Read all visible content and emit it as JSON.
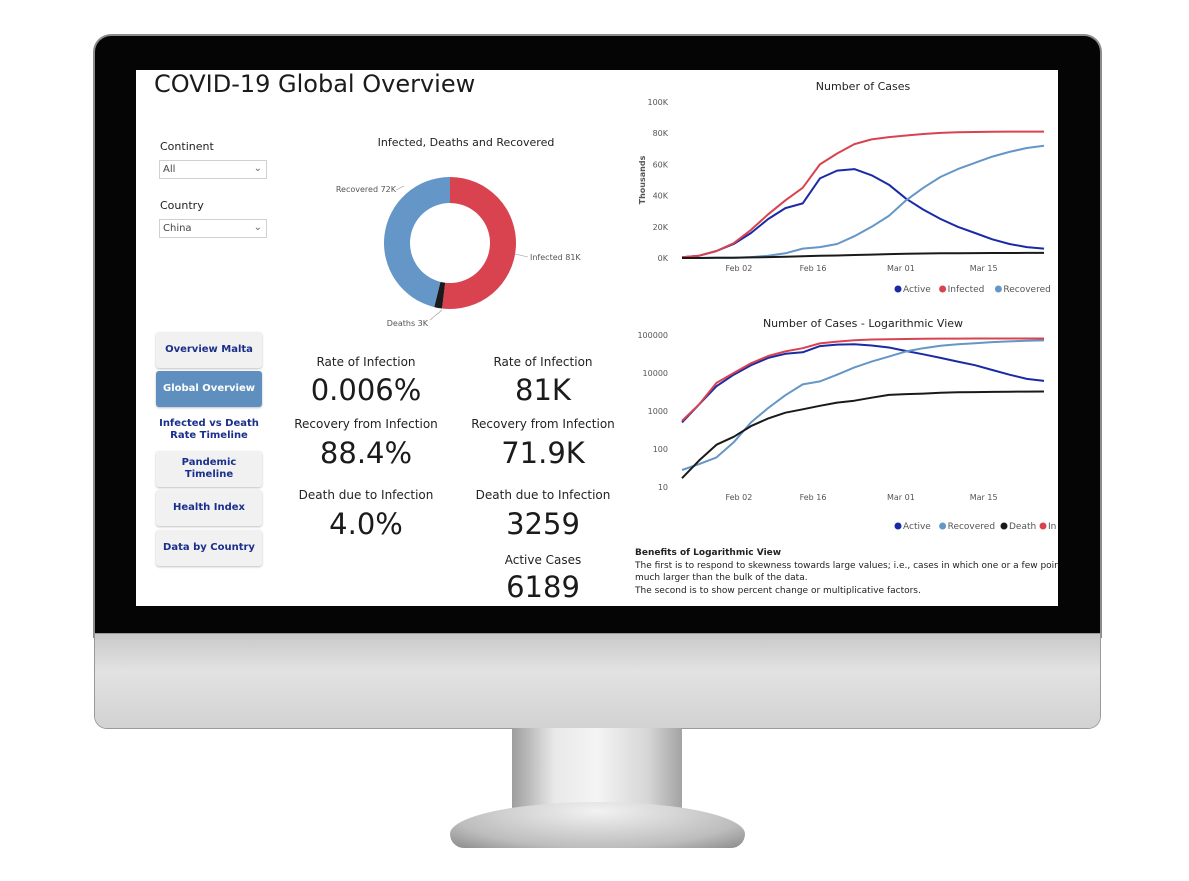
{
  "dashboard": {
    "title": "COVID-19 Global Overview",
    "filters": {
      "continent_label": "Continent",
      "continent_value": "All",
      "country_label": "Country",
      "country_value": "China"
    },
    "nav": [
      {
        "label": "Overview Malta",
        "active": false
      },
      {
        "label": "Global Overview",
        "active": true
      },
      {
        "label": "Infected vs Death Rate Timeline",
        "active": false
      },
      {
        "label": "Pandemic Timeline",
        "active": false
      },
      {
        "label": "Health Index",
        "active": false
      },
      {
        "label": "Data by Country",
        "active": false
      }
    ],
    "kpis": {
      "left": [
        {
          "label": "Rate of Infection",
          "value": "0.006%"
        },
        {
          "label": "Recovery from Infection",
          "value": "88.4%"
        },
        {
          "label": "Death due to Infection",
          "value": "4.0%"
        }
      ],
      "right": [
        {
          "label": "Rate of Infection",
          "value": "81K"
        },
        {
          "label": "Recovery from Infection",
          "value": "71.9K"
        },
        {
          "label": "Death due to Infection",
          "value": "3259"
        },
        {
          "label": "Active Cases",
          "value": "6189"
        }
      ]
    },
    "note": {
      "heading": "Benefits of Logarithmic View",
      "line1": "The first is to respond to skewness towards large values; i.e., cases in which one or a few points are",
      "line2": "much larger than the bulk of the data.",
      "line3": "The second is to show percent change or multiplicative factors."
    },
    "colors": {
      "active": "#1a2aa6",
      "infected": "#d9434f",
      "recovered": "#6496c8",
      "death": "#1a1a1a"
    }
  },
  "chart_data": [
    {
      "type": "pie",
      "title": "Infected, Deaths and Recovered",
      "slices": [
        {
          "label": "Infected",
          "value": 81,
          "display": "Infected 81K"
        },
        {
          "label": "Deaths",
          "value": 3,
          "display": "Deaths 3K"
        },
        {
          "label": "Recovered",
          "value": 72,
          "display": "Recovered 72K"
        }
      ]
    },
    {
      "type": "line",
      "title": "Number of Cases",
      "ylabel": "Thousands",
      "yticks": [
        "0K",
        "20K",
        "40K",
        "60K",
        "80K",
        "100K"
      ],
      "ylim": [
        0,
        100
      ],
      "xticks": [
        "Feb 02",
        "Feb 16",
        "Mar 01",
        "Mar 15"
      ],
      "x": [
        "Jan 22",
        "Jan 25",
        "Jan 28",
        "Jan 31",
        "Feb 03",
        "Feb 06",
        "Feb 09",
        "Feb 12",
        "Feb 13",
        "Feb 15",
        "Feb 18",
        "Feb 21",
        "Feb 24",
        "Feb 27",
        "Mar 01",
        "Mar 04",
        "Mar 07",
        "Mar 10",
        "Mar 13",
        "Mar 16",
        "Mar 19",
        "Mar 22"
      ],
      "series": [
        {
          "name": "Active",
          "values": [
            0.5,
            1.5,
            4.5,
            9,
            16,
            25,
            32,
            35,
            51,
            56,
            57,
            53,
            47,
            38,
            31,
            25,
            20,
            16,
            12,
            9,
            7,
            6
          ]
        },
        {
          "name": "Infected",
          "values": [
            0.5,
            1.5,
            4.5,
            9.5,
            18,
            28,
            37,
            45,
            60,
            67,
            73,
            76,
            77.5,
            78.5,
            79.5,
            80.2,
            80.6,
            80.8,
            80.9,
            81,
            81,
            81
          ]
        },
        {
          "name": "Recovered",
          "values": [
            0,
            0,
            0.1,
            0.2,
            0.6,
            1.5,
            3,
            6,
            7,
            9,
            14,
            20,
            27,
            37,
            45,
            52,
            57,
            61,
            65,
            68,
            70.5,
            72
          ]
        },
        {
          "name": "Death",
          "values": [
            0,
            0,
            0.1,
            0.2,
            0.4,
            0.6,
            0.8,
            1.1,
            1.4,
            1.6,
            1.9,
            2.2,
            2.5,
            2.7,
            2.9,
            3,
            3.1,
            3.15,
            3.2,
            3.22,
            3.24,
            3.26
          ]
        }
      ]
    },
    {
      "type": "line",
      "title": "Number of Cases - Logarithmic View",
      "log_scale": true,
      "yticks": [
        "10",
        "100",
        "1000",
        "10000",
        "100000"
      ],
      "ylim": [
        10,
        100000
      ],
      "xticks": [
        "Feb 02",
        "Feb 16",
        "Mar 01",
        "Mar 15"
      ],
      "x": [
        "Jan 22",
        "Jan 25",
        "Jan 28",
        "Jan 31",
        "Feb 03",
        "Feb 06",
        "Feb 09",
        "Feb 12",
        "Feb 13",
        "Feb 15",
        "Feb 18",
        "Feb 21",
        "Feb 24",
        "Feb 27",
        "Mar 01",
        "Mar 04",
        "Mar 07",
        "Mar 10",
        "Mar 13",
        "Mar 16",
        "Mar 19",
        "Mar 22"
      ],
      "series": [
        {
          "name": "Active",
          "values": [
            500,
            1500,
            4500,
            9000,
            16000,
            25000,
            32000,
            35000,
            51000,
            56000,
            57000,
            53000,
            47000,
            38000,
            31000,
            25000,
            20000,
            16000,
            12000,
            9000,
            7000,
            6200
          ]
        },
        {
          "name": "Recovered",
          "values": [
            28,
            40,
            60,
            150,
            500,
            1200,
            2600,
            5000,
            6000,
            9000,
            14000,
            20000,
            27000,
            37000,
            45000,
            52000,
            57000,
            61000,
            65000,
            68000,
            70500,
            72000
          ]
        },
        {
          "name": "Death",
          "values": [
            17,
            50,
            130,
            210,
            400,
            640,
            900,
            1110,
            1370,
            1660,
            1870,
            2240,
            2660,
            2780,
            2870,
            3010,
            3100,
            3140,
            3180,
            3220,
            3240,
            3260
          ]
        },
        {
          "name": "Infected",
          "values": [
            550,
            1500,
            5500,
            10000,
            18000,
            28000,
            37000,
            45000,
            60000,
            67000,
            73000,
            76000,
            77500,
            78500,
            79500,
            80200,
            80600,
            80800,
            80900,
            81000,
            81000,
            81000
          ]
        }
      ]
    }
  ]
}
